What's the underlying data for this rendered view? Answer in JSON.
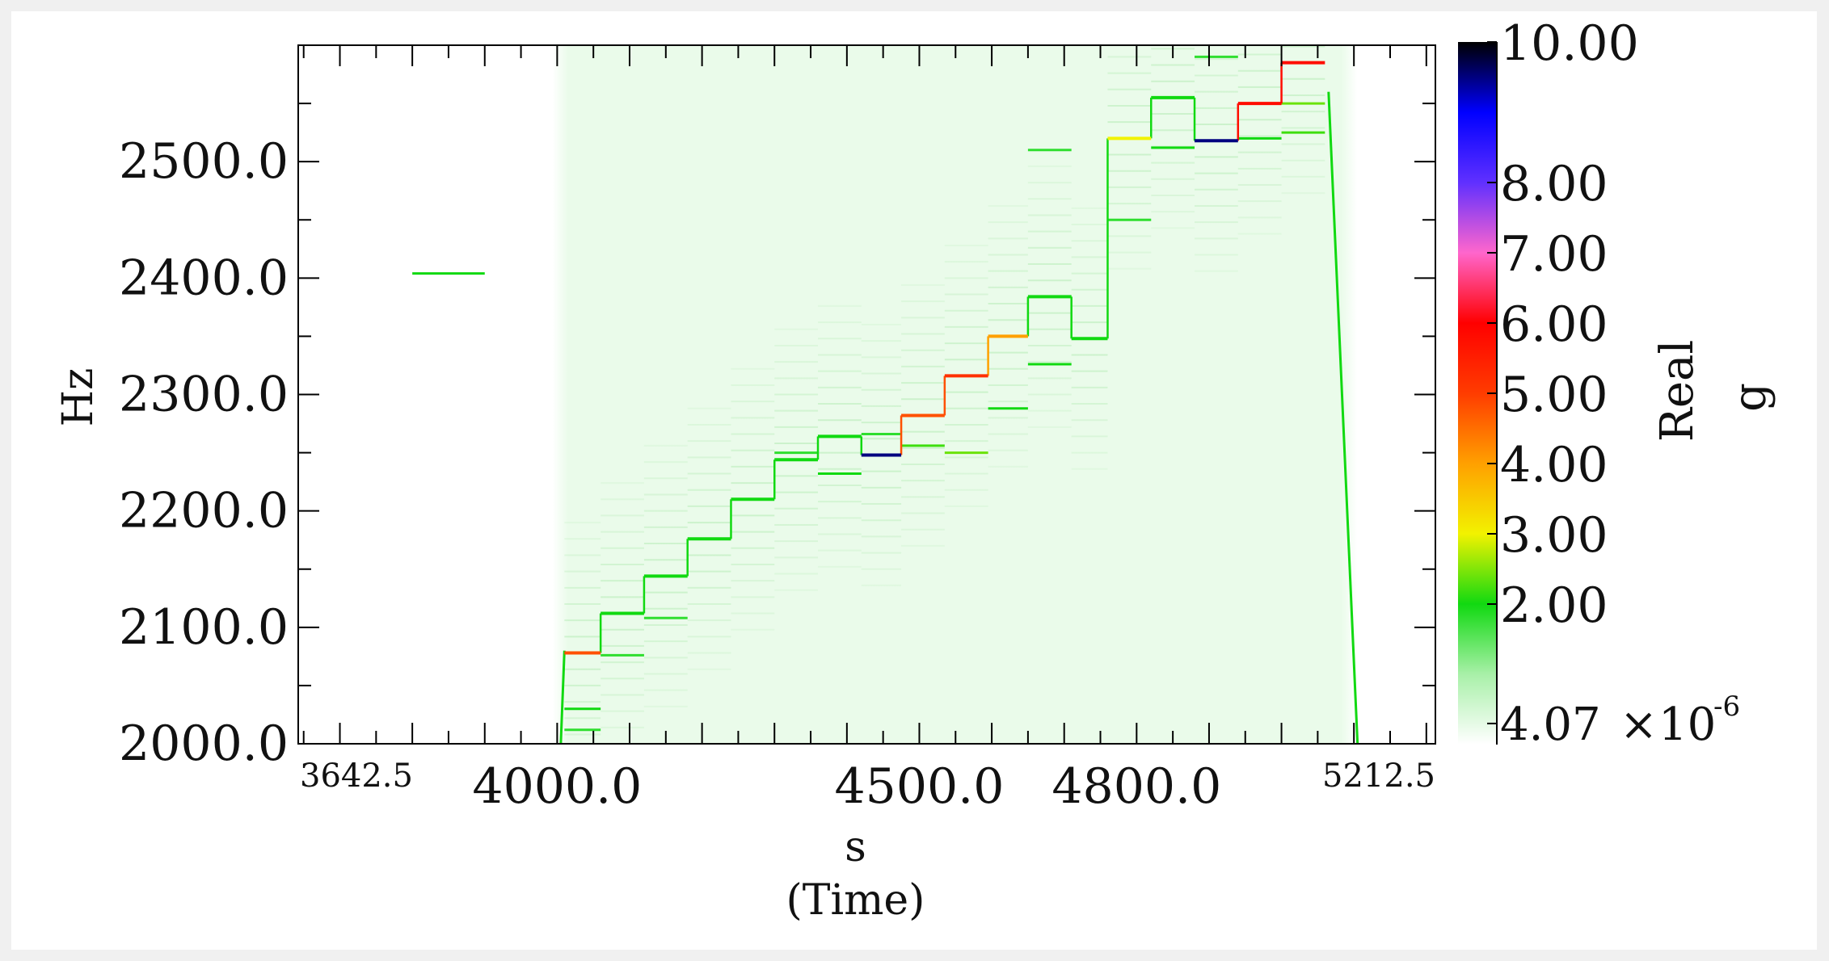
{
  "chart_data": {
    "type": "heatmap",
    "title": "",
    "xlabel": "s",
    "xlabel_sub": "(Time)",
    "ylabel": "Hz",
    "xlim": [
      3642.5,
      5212.5
    ],
    "ylim": [
      2000,
      2600
    ],
    "x_ticks": [
      {
        "value": 3642.5,
        "label": "3642.5",
        "size": "small"
      },
      {
        "value": 4000,
        "label": "4000.0",
        "size": "large"
      },
      {
        "value": 4500,
        "label": "4500.0",
        "size": "large"
      },
      {
        "value": 4800,
        "label": "4800.0",
        "size": "large"
      },
      {
        "value": 5212.5,
        "label": "5212.5",
        "size": "small"
      }
    ],
    "y_ticks": [
      {
        "value": 2000,
        "label": "2000.0"
      },
      {
        "value": 2100,
        "label": "2100.0"
      },
      {
        "value": 2200,
        "label": "2200.0"
      },
      {
        "value": 2300,
        "label": "2300.0"
      },
      {
        "value": 2400,
        "label": "2400.0"
      },
      {
        "value": 2500,
        "label": "2500.0"
      }
    ],
    "colorbar": {
      "label": "Real",
      "unit": "g",
      "ticks": [
        {
          "value": 10,
          "label": "10.00"
        },
        {
          "value": 8,
          "label": "8.00"
        },
        {
          "value": 7,
          "label": "7.00"
        },
        {
          "value": 6,
          "label": "6.00"
        },
        {
          "value": 5,
          "label": "5.00"
        },
        {
          "value": 4,
          "label": "4.00"
        },
        {
          "value": 3,
          "label": "3.00"
        },
        {
          "value": 2,
          "label": "2.00"
        }
      ],
      "min_label": {
        "value": 4.07e-06,
        "mantissa": "4.07",
        "times": "×",
        "base": "10",
        "exponent": "-6"
      },
      "color_stops": [
        {
          "value": 0,
          "color": "#ffffff"
        },
        {
          "value": 1,
          "color": "#a8f0a8"
        },
        {
          "value": 2,
          "color": "#11d911"
        },
        {
          "value": 3,
          "color": "#f2f200"
        },
        {
          "value": 4,
          "color": "#ffa000"
        },
        {
          "value": 5,
          "color": "#ff3c00"
        },
        {
          "value": 6,
          "color": "#ff0000"
        },
        {
          "value": 7,
          "color": "#ff66cc"
        },
        {
          "value": 8,
          "color": "#6030ff"
        },
        {
          "value": 9,
          "color": "#0000ff"
        },
        {
          "value": 10,
          "color": "#000000"
        }
      ]
    },
    "steps": [
      {
        "t0": 4010,
        "t1": 4060,
        "f": 2078,
        "g": 4.8
      },
      {
        "t0": 4060,
        "t1": 4120,
        "f": 2112,
        "g": 2.0
      },
      {
        "t0": 4120,
        "t1": 4180,
        "f": 2144,
        "g": 2.0
      },
      {
        "t0": 4180,
        "t1": 4240,
        "f": 2176,
        "g": 2.0
      },
      {
        "t0": 4240,
        "t1": 4300,
        "f": 2210,
        "g": 2.0
      },
      {
        "t0": 4300,
        "t1": 4360,
        "f": 2244,
        "g": 2.0
      },
      {
        "t0": 4360,
        "t1": 4420,
        "f": 2264,
        "g": 2.0
      },
      {
        "t0": 4420,
        "t1": 4475,
        "f": 2248,
        "g": 9.5
      },
      {
        "t0": 4475,
        "t1": 4535,
        "f": 2282,
        "g": 4.8
      },
      {
        "t0": 4535,
        "t1": 4595,
        "f": 2316,
        "g": 5.2
      },
      {
        "t0": 4595,
        "t1": 4650,
        "f": 2350,
        "g": 4.0
      },
      {
        "t0": 4650,
        "t1": 4710,
        "f": 2384,
        "g": 2.0
      },
      {
        "t0": 4710,
        "t1": 4760,
        "f": 2348,
        "g": 2.0
      },
      {
        "t0": 4760,
        "t1": 4820,
        "f": 2520,
        "g": 3.0
      },
      {
        "t0": 4820,
        "t1": 4880,
        "f": 2555,
        "g": 2.0
      },
      {
        "t0": 4880,
        "t1": 4940,
        "f": 2518,
        "g": 9.5
      },
      {
        "t0": 4940,
        "t1": 5000,
        "f": 2550,
        "g": 5.8
      },
      {
        "t0": 5000,
        "t1": 5060,
        "f": 2585,
        "g": 5.8
      }
    ],
    "secondary_lines": [
      {
        "t0": 3800,
        "t1": 3900,
        "f": 2404,
        "g": 2.0
      },
      {
        "t0": 4010,
        "t1": 4060,
        "f": 2030,
        "g": 2.0
      },
      {
        "t0": 4010,
        "t1": 4060,
        "f": 2012,
        "g": 1.8
      },
      {
        "t0": 4060,
        "t1": 4120,
        "f": 2076,
        "g": 1.8
      },
      {
        "t0": 4120,
        "t1": 4180,
        "f": 2108,
        "g": 1.8
      },
      {
        "t0": 4300,
        "t1": 4360,
        "f": 2250,
        "g": 1.8
      },
      {
        "t0": 4360,
        "t1": 4420,
        "f": 2232,
        "g": 2.0
      },
      {
        "t0": 4420,
        "t1": 4475,
        "f": 2266,
        "g": 1.8
      },
      {
        "t0": 4475,
        "t1": 4535,
        "f": 2256,
        "g": 2.2
      },
      {
        "t0": 4535,
        "t1": 4595,
        "f": 2250,
        "g": 2.4
      },
      {
        "t0": 4595,
        "t1": 4650,
        "f": 2288,
        "g": 2.0
      },
      {
        "t0": 4650,
        "t1": 4710,
        "f": 2326,
        "g": 2.0
      },
      {
        "t0": 4650,
        "t1": 4710,
        "f": 2510,
        "g": 1.8
      },
      {
        "t0": 4760,
        "t1": 4820,
        "f": 2450,
        "g": 1.8
      },
      {
        "t0": 4820,
        "t1": 4880,
        "f": 2512,
        "g": 2.0
      },
      {
        "t0": 4880,
        "t1": 4940,
        "f": 2590,
        "g": 1.8
      },
      {
        "t0": 4940,
        "t1": 5000,
        "f": 2520,
        "g": 2.0
      },
      {
        "t0": 5000,
        "t1": 5060,
        "f": 2525,
        "g": 2.2
      },
      {
        "t0": 5000,
        "t1": 5060,
        "f": 2550,
        "g": 2.4
      }
    ],
    "transients": [
      {
        "t0": 5065,
        "f0": 2560,
        "t1": 5105,
        "f1": 2000,
        "g": 2.0
      },
      {
        "t0": 4010,
        "f0": 2080,
        "t1": 4005,
        "f1": 2000,
        "g": 2.0
      }
    ]
  }
}
